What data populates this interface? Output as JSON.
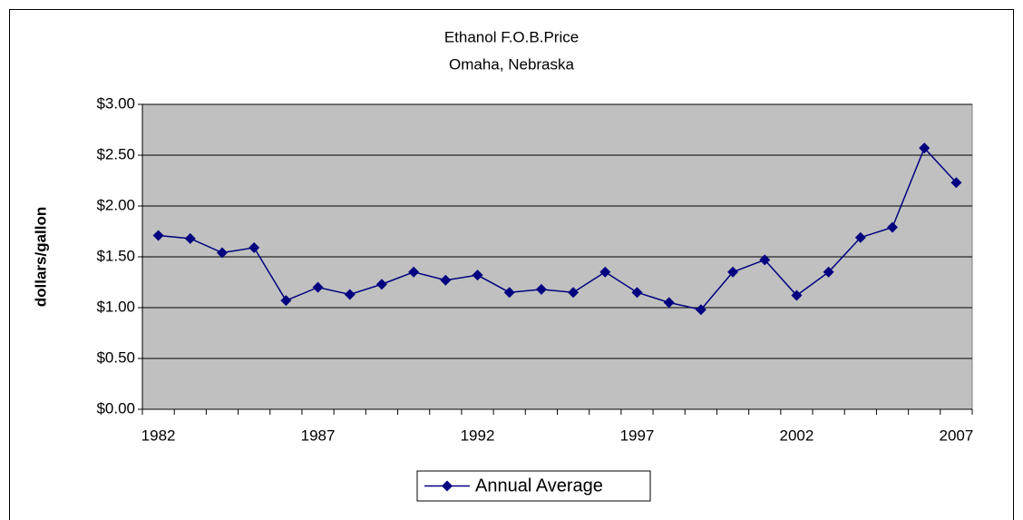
{
  "chart_data": {
    "type": "line",
    "title": "Ethanol F.O.B.Price",
    "subtitle": "Omaha, Nebraska",
    "y_label": "dollars/gallon",
    "categories": [
      1982,
      null,
      null,
      null,
      null,
      1987,
      null,
      null,
      null,
      null,
      1992,
      null,
      null,
      null,
      null,
      1997,
      null,
      null,
      null,
      null,
      2002,
      null,
      null,
      null,
      null,
      2007
    ],
    "series": [
      {
        "name": "Annual Average",
        "color": "#000080",
        "values": [
          1.71,
          1.68,
          1.54,
          1.59,
          1.07,
          1.2,
          1.13,
          1.23,
          1.35,
          1.27,
          1.32,
          1.15,
          1.18,
          1.15,
          1.35,
          1.15,
          1.05,
          0.98,
          1.35,
          1.47,
          1.12,
          1.35,
          1.69,
          1.79,
          2.57,
          2.23
        ]
      }
    ],
    "ylim": [
      0,
      3
    ],
    "yticks": [
      {
        "value": 0,
        "label": "$0.00"
      },
      {
        "value": 0.5,
        "label": "$0.50"
      },
      {
        "value": 1,
        "label": "$1.00"
      },
      {
        "value": 1.5,
        "label": "$1.50"
      },
      {
        "value": 2,
        "label": "$2.00"
      },
      {
        "value": 2.5,
        "label": "$2.50"
      },
      {
        "value": 3,
        "label": "$3.00"
      }
    ],
    "grid": true,
    "legend": "bottom",
    "plot_background": "#c0c0c0"
  }
}
